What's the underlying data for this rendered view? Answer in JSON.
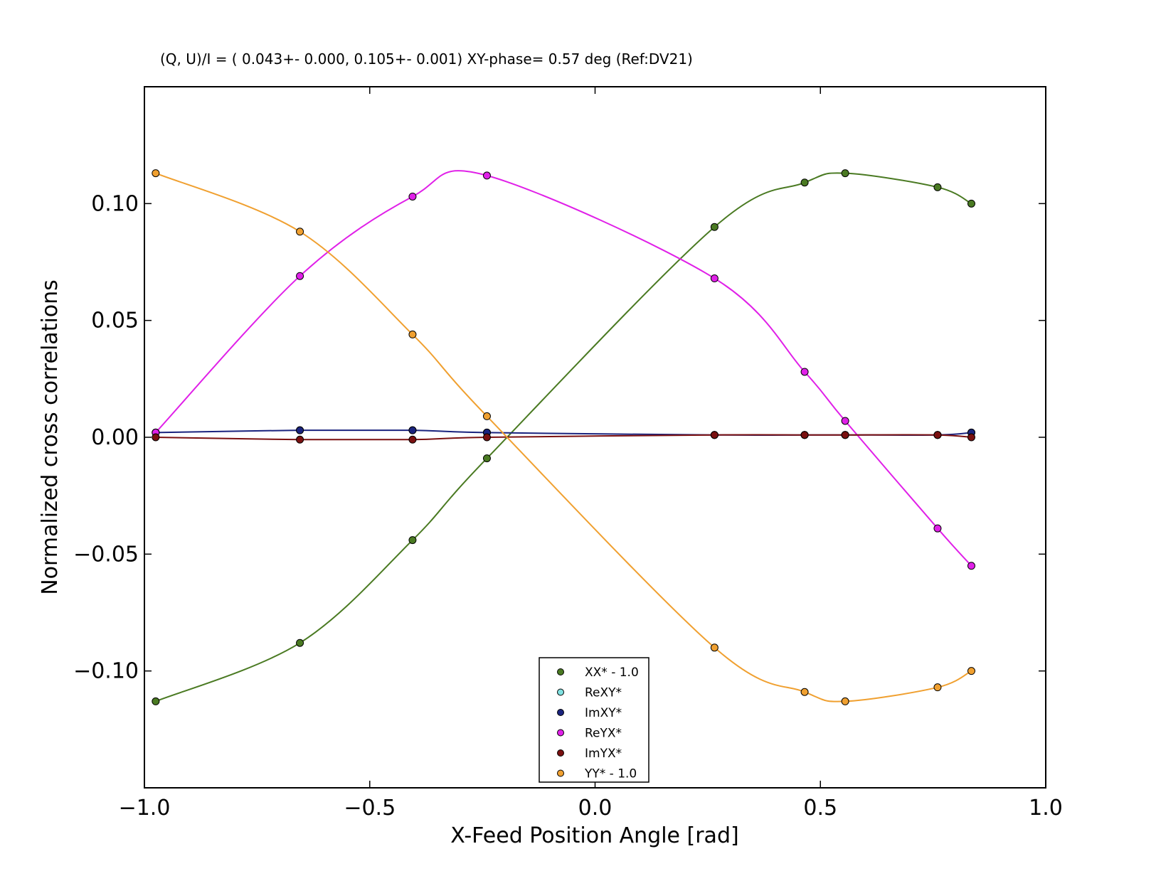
{
  "chart_data": {
    "type": "scatter",
    "title": "(Q, U)/I = ( 0.043+- 0.000,  0.105+- 0.001) XY-phase=  0.57 deg (Ref:DV21)",
    "xlabel": "X-Feed Position Angle [rad]",
    "ylabel": "Normalized cross correlations",
    "xlim": [
      -1.0,
      1.0
    ],
    "ylim": [
      -0.15,
      0.15
    ],
    "x_ticks": [
      -1.0,
      -0.5,
      0.0,
      0.5,
      1.0
    ],
    "x_tick_labels": [
      "−1.0",
      "−0.5",
      "0.0",
      "0.5",
      "1.0"
    ],
    "y_ticks": [
      -0.1,
      -0.05,
      0.0,
      0.05,
      0.1
    ],
    "y_tick_labels": [
      "−0.10",
      "−0.05",
      "0.00",
      "0.05",
      "0.10"
    ],
    "grid": false,
    "legend_position": "bottom-center",
    "x": [
      -0.975,
      -0.655,
      -0.405,
      -0.24,
      0.265,
      0.465,
      0.555,
      0.76,
      0.835
    ],
    "series": [
      {
        "name": "XX* - 1.0",
        "color": "#4a7a22",
        "values": [
          -0.113,
          -0.088,
          -0.044,
          -0.009,
          0.09,
          0.109,
          0.113,
          0.107,
          0.1
        ]
      },
      {
        "name": "ReXY*",
        "color": "#7fe0e0",
        "values": [
          0.002,
          0.003,
          0.003,
          0.002,
          0.001,
          0.001,
          0.001,
          0.001,
          0.002
        ]
      },
      {
        "name": "ImXY*",
        "color": "#1a237e",
        "values": [
          0.002,
          0.003,
          0.003,
          0.002,
          0.001,
          0.001,
          0.001,
          0.001,
          0.002
        ]
      },
      {
        "name": "ReYX*",
        "color": "#e020e8",
        "values": [
          0.002,
          0.069,
          0.103,
          0.112,
          0.068,
          0.028,
          0.007,
          -0.039,
          -0.055
        ]
      },
      {
        "name": "ImYX*",
        "color": "#7a1010",
        "values": [
          0.0,
          -0.001,
          -0.001,
          0.0,
          0.001,
          0.001,
          0.001,
          0.001,
          0.0
        ]
      },
      {
        "name": "YY* - 1.0",
        "color": "#f0a030",
        "values": [
          0.113,
          0.088,
          0.044,
          0.009,
          -0.09,
          -0.109,
          -0.113,
          -0.107,
          -0.1
        ]
      }
    ]
  }
}
